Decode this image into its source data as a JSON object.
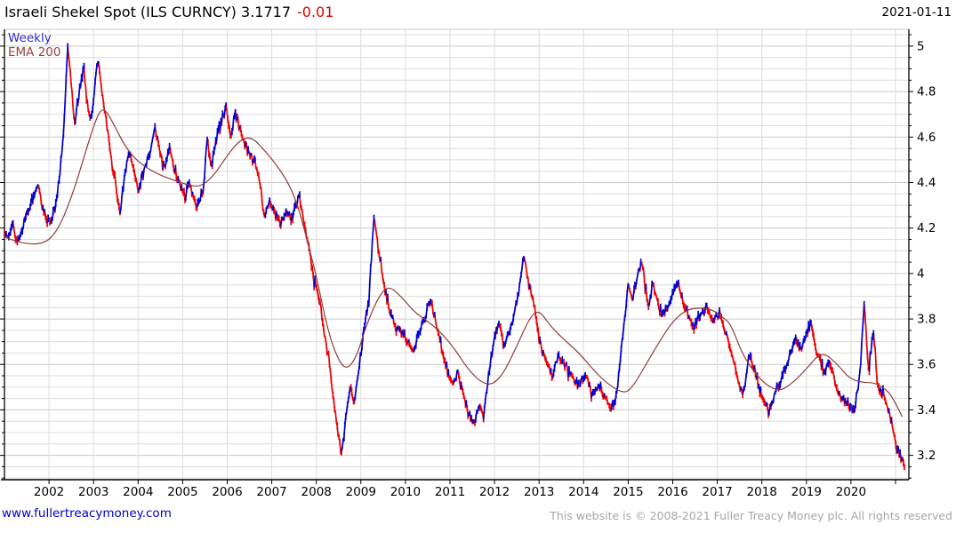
{
  "header": {
    "title": "Israeli Shekel Spot (ILS CURNCY) 3.1717",
    "change": "-0.01",
    "date": "2021-01-11"
  },
  "legend": {
    "series": [
      {
        "label": "Weekly",
        "color": "#2b2bc8"
      },
      {
        "label": "EMA 200",
        "color": "#9c4242"
      }
    ]
  },
  "footer": {
    "site": "www.fullertreacymoney.com",
    "copyright": "This website is © 2008-2021 Fuller Treacy Money plc. All rights reserved"
  },
  "colors": {
    "title": "#000000",
    "change_negative": "#e10000",
    "footer_site": "#0000cc",
    "footer_copyright": "#a6a6a6"
  },
  "chart_data": {
    "type": "line",
    "title": "Israeli Shekel Spot (ILS CURNCY)",
    "subtitle_note": "weekly up/down bars with 200-period EMA overlay",
    "last_price": 3.1717,
    "change": -0.01,
    "as_of": "2021-01-11",
    "x_axis": {
      "range": [
        2001.0,
        2021.3
      ],
      "tick_years": [
        2002,
        2003,
        2004,
        2005,
        2006,
        2007,
        2008,
        2009,
        2010,
        2011,
        2012,
        2013,
        2014,
        2015,
        2016,
        2017,
        2018,
        2019,
        2020
      ],
      "gridline_years": [
        2002,
        2003,
        2004,
        2005,
        2006,
        2007,
        2008,
        2009,
        2010,
        2011,
        2012,
        2013,
        2014,
        2015,
        2016,
        2017,
        2018,
        2019,
        2020,
        2021
      ]
    },
    "y_axis": {
      "range": [
        3.093,
        5.074
      ],
      "minor_step": 0.05,
      "major_step": 0.2,
      "ticks": [
        {
          "label": "5",
          "value": 5.0
        },
        {
          "label": "4.8",
          "value": 4.8
        },
        {
          "label": "4.6",
          "value": 4.6
        },
        {
          "label": "4.4",
          "value": 4.4
        },
        {
          "label": "4.2",
          "value": 4.2
        },
        {
          "label": "4",
          "value": 4.0
        },
        {
          "label": "3.8",
          "value": 3.8
        },
        {
          "label": "3.6",
          "value": 3.6
        },
        {
          "label": "3.4",
          "value": 3.4
        },
        {
          "label": "3.2",
          "value": 3.2
        }
      ]
    },
    "grid": {
      "minor_color": "#dcdcdc",
      "major_color": "#c9c9c9",
      "axis_color": "#000000",
      "top_border_color": "#c9c9c9"
    },
    "series": [
      {
        "name": "Weekly",
        "style": "weekly-bars",
        "up_color": "#0000d0",
        "down_color": "#ee0000",
        "points": [
          [
            2001.0,
            4.19
          ],
          [
            2001.08,
            4.15
          ],
          [
            2001.18,
            4.22
          ],
          [
            2001.28,
            4.14
          ],
          [
            2001.38,
            4.18
          ],
          [
            2001.45,
            4.25
          ],
          [
            2001.55,
            4.28
          ],
          [
            2001.65,
            4.33
          ],
          [
            2001.75,
            4.4
          ],
          [
            2001.85,
            4.29
          ],
          [
            2001.95,
            4.23
          ],
          [
            2002.05,
            4.24
          ],
          [
            2002.15,
            4.3
          ],
          [
            2002.25,
            4.45
          ],
          [
            2002.33,
            4.63
          ],
          [
            2002.42,
            5.01
          ],
          [
            2002.48,
            4.88
          ],
          [
            2002.57,
            4.65
          ],
          [
            2002.68,
            4.79
          ],
          [
            2002.78,
            4.9
          ],
          [
            2002.88,
            4.71
          ],
          [
            2002.97,
            4.68
          ],
          [
            2003.04,
            4.86
          ],
          [
            2003.1,
            4.94
          ],
          [
            2003.2,
            4.78
          ],
          [
            2003.3,
            4.65
          ],
          [
            2003.42,
            4.48
          ],
          [
            2003.52,
            4.36
          ],
          [
            2003.6,
            4.27
          ],
          [
            2003.68,
            4.4
          ],
          [
            2003.75,
            4.5
          ],
          [
            2003.82,
            4.53
          ],
          [
            2003.92,
            4.43
          ],
          [
            2004.02,
            4.37
          ],
          [
            2004.15,
            4.47
          ],
          [
            2004.25,
            4.51
          ],
          [
            2004.38,
            4.64
          ],
          [
            2004.5,
            4.52
          ],
          [
            2004.6,
            4.46
          ],
          [
            2004.7,
            4.55
          ],
          [
            2004.82,
            4.45
          ],
          [
            2004.95,
            4.39
          ],
          [
            2005.05,
            4.33
          ],
          [
            2005.15,
            4.4
          ],
          [
            2005.31,
            4.29
          ],
          [
            2005.45,
            4.35
          ],
          [
            2005.55,
            4.59
          ],
          [
            2005.65,
            4.47
          ],
          [
            2005.78,
            4.62
          ],
          [
            2005.88,
            4.68
          ],
          [
            2005.97,
            4.74
          ],
          [
            2006.08,
            4.59
          ],
          [
            2006.17,
            4.71
          ],
          [
            2006.3,
            4.62
          ],
          [
            2006.45,
            4.55
          ],
          [
            2006.6,
            4.5
          ],
          [
            2006.72,
            4.42
          ],
          [
            2006.83,
            4.26
          ],
          [
            2006.95,
            4.31
          ],
          [
            2007.08,
            4.27
          ],
          [
            2007.2,
            4.22
          ],
          [
            2007.32,
            4.27
          ],
          [
            2007.45,
            4.24
          ],
          [
            2007.61,
            4.35
          ],
          [
            2007.72,
            4.22
          ],
          [
            2007.83,
            4.13
          ],
          [
            2007.95,
            3.97
          ],
          [
            2008.08,
            3.88
          ],
          [
            2008.2,
            3.72
          ],
          [
            2008.32,
            3.57
          ],
          [
            2008.45,
            3.34
          ],
          [
            2008.57,
            3.2
          ],
          [
            2008.66,
            3.37
          ],
          [
            2008.76,
            3.5
          ],
          [
            2008.85,
            3.42
          ],
          [
            2008.95,
            3.58
          ],
          [
            2009.08,
            3.77
          ],
          [
            2009.18,
            3.88
          ],
          [
            2009.29,
            4.25
          ],
          [
            2009.4,
            4.1
          ],
          [
            2009.5,
            3.97
          ],
          [
            2009.62,
            3.86
          ],
          [
            2009.75,
            3.77
          ],
          [
            2009.9,
            3.76
          ],
          [
            2010.05,
            3.7
          ],
          [
            2010.18,
            3.66
          ],
          [
            2010.3,
            3.74
          ],
          [
            2010.45,
            3.81
          ],
          [
            2010.56,
            3.89
          ],
          [
            2010.68,
            3.78
          ],
          [
            2010.8,
            3.68
          ],
          [
            2010.95,
            3.56
          ],
          [
            2011.08,
            3.52
          ],
          [
            2011.2,
            3.55
          ],
          [
            2011.32,
            3.45
          ],
          [
            2011.45,
            3.37
          ],
          [
            2011.55,
            3.34
          ],
          [
            2011.65,
            3.43
          ],
          [
            2011.75,
            3.38
          ],
          [
            2011.88,
            3.57
          ],
          [
            2012.0,
            3.73
          ],
          [
            2012.1,
            3.78
          ],
          [
            2012.22,
            3.68
          ],
          [
            2012.35,
            3.74
          ],
          [
            2012.5,
            3.88
          ],
          [
            2012.66,
            4.08
          ],
          [
            2012.78,
            3.94
          ],
          [
            2012.9,
            3.85
          ],
          [
            2013.02,
            3.7
          ],
          [
            2013.15,
            3.62
          ],
          [
            2013.3,
            3.56
          ],
          [
            2013.45,
            3.64
          ],
          [
            2013.6,
            3.58
          ],
          [
            2013.75,
            3.54
          ],
          [
            2013.9,
            3.51
          ],
          [
            2014.05,
            3.56
          ],
          [
            2014.18,
            3.47
          ],
          [
            2014.35,
            3.5
          ],
          [
            2014.5,
            3.45
          ],
          [
            2014.62,
            3.39
          ],
          [
            2014.75,
            3.48
          ],
          [
            2014.88,
            3.73
          ],
          [
            2015.0,
            3.95
          ],
          [
            2015.1,
            3.89
          ],
          [
            2015.2,
            3.98
          ],
          [
            2015.31,
            4.06
          ],
          [
            2015.45,
            3.84
          ],
          [
            2015.55,
            3.96
          ],
          [
            2015.68,
            3.86
          ],
          [
            2015.8,
            3.82
          ],
          [
            2015.95,
            3.89
          ],
          [
            2016.1,
            3.96
          ],
          [
            2016.3,
            3.84
          ],
          [
            2016.45,
            3.76
          ],
          [
            2016.6,
            3.81
          ],
          [
            2016.75,
            3.85
          ],
          [
            2016.9,
            3.79
          ],
          [
            2017.05,
            3.83
          ],
          [
            2017.2,
            3.73
          ],
          [
            2017.35,
            3.63
          ],
          [
            2017.48,
            3.53
          ],
          [
            2017.58,
            3.46
          ],
          [
            2017.71,
            3.65
          ],
          [
            2017.85,
            3.56
          ],
          [
            2018.0,
            3.47
          ],
          [
            2018.15,
            3.38
          ],
          [
            2018.3,
            3.47
          ],
          [
            2018.45,
            3.54
          ],
          [
            2018.6,
            3.62
          ],
          [
            2018.75,
            3.71
          ],
          [
            2018.88,
            3.67
          ],
          [
            2019.0,
            3.74
          ],
          [
            2019.1,
            3.78
          ],
          [
            2019.25,
            3.64
          ],
          [
            2019.4,
            3.57
          ],
          [
            2019.52,
            3.61
          ],
          [
            2019.65,
            3.52
          ],
          [
            2019.8,
            3.46
          ],
          [
            2019.95,
            3.42
          ],
          [
            2020.08,
            3.39
          ],
          [
            2020.2,
            3.56
          ],
          [
            2020.3,
            3.88
          ],
          [
            2020.4,
            3.57
          ],
          [
            2020.5,
            3.76
          ],
          [
            2020.6,
            3.5
          ],
          [
            2020.72,
            3.47
          ],
          [
            2020.82,
            3.41
          ],
          [
            2020.92,
            3.34
          ],
          [
            2021.02,
            3.25
          ],
          [
            2021.12,
            3.19
          ],
          [
            2021.2,
            3.165
          ]
        ]
      },
      {
        "name": "EMA 200",
        "style": "line",
        "color": "#8f3d3d",
        "points": [
          [
            2001.0,
            4.16
          ],
          [
            2001.4,
            4.13
          ],
          [
            2001.9,
            4.13
          ],
          [
            2002.2,
            4.19
          ],
          [
            2002.5,
            4.33
          ],
          [
            2002.8,
            4.52
          ],
          [
            2003.0,
            4.65
          ],
          [
            2003.2,
            4.74
          ],
          [
            2003.45,
            4.66
          ],
          [
            2003.7,
            4.56
          ],
          [
            2004.0,
            4.49
          ],
          [
            2004.4,
            4.44
          ],
          [
            2004.8,
            4.41
          ],
          [
            2005.1,
            4.39
          ],
          [
            2005.4,
            4.38
          ],
          [
            2005.7,
            4.43
          ],
          [
            2006.0,
            4.52
          ],
          [
            2006.3,
            4.59
          ],
          [
            2006.55,
            4.6
          ],
          [
            2006.8,
            4.55
          ],
          [
            2007.1,
            4.48
          ],
          [
            2007.4,
            4.39
          ],
          [
            2007.6,
            4.29
          ],
          [
            2007.8,
            4.14
          ],
          [
            2008.0,
            3.99
          ],
          [
            2008.2,
            3.8
          ],
          [
            2008.4,
            3.66
          ],
          [
            2008.65,
            3.57
          ],
          [
            2008.9,
            3.63
          ],
          [
            2009.1,
            3.76
          ],
          [
            2009.35,
            3.88
          ],
          [
            2009.6,
            3.95
          ],
          [
            2009.9,
            3.9
          ],
          [
            2010.2,
            3.83
          ],
          [
            2010.5,
            3.79
          ],
          [
            2010.8,
            3.74
          ],
          [
            2011.1,
            3.67
          ],
          [
            2011.4,
            3.58
          ],
          [
            2011.7,
            3.52
          ],
          [
            2011.95,
            3.51
          ],
          [
            2012.2,
            3.56
          ],
          [
            2012.5,
            3.68
          ],
          [
            2012.8,
            3.81
          ],
          [
            2013.0,
            3.84
          ],
          [
            2013.25,
            3.77
          ],
          [
            2013.5,
            3.72
          ],
          [
            2013.9,
            3.65
          ],
          [
            2014.2,
            3.58
          ],
          [
            2014.5,
            3.52
          ],
          [
            2014.9,
            3.47
          ],
          [
            2015.1,
            3.5
          ],
          [
            2015.4,
            3.6
          ],
          [
            2015.7,
            3.7
          ],
          [
            2016.0,
            3.79
          ],
          [
            2016.3,
            3.84
          ],
          [
            2016.6,
            3.85
          ],
          [
            2016.9,
            3.84
          ],
          [
            2017.1,
            3.81
          ],
          [
            2017.3,
            3.78
          ],
          [
            2017.55,
            3.65
          ],
          [
            2017.85,
            3.56
          ],
          [
            2018.1,
            3.51
          ],
          [
            2018.4,
            3.48
          ],
          [
            2018.7,
            3.52
          ],
          [
            2019.0,
            3.58
          ],
          [
            2019.35,
            3.66
          ],
          [
            2019.7,
            3.6
          ],
          [
            2019.95,
            3.54
          ],
          [
            2020.25,
            3.52
          ],
          [
            2020.55,
            3.52
          ],
          [
            2020.85,
            3.48
          ],
          [
            2021.0,
            3.43
          ],
          [
            2021.15,
            3.37
          ]
        ]
      }
    ]
  }
}
